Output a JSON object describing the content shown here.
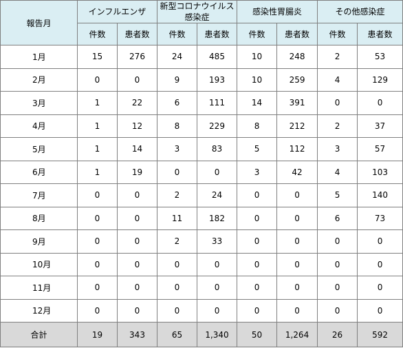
{
  "table": {
    "corner_label": "報告月",
    "groups": [
      {
        "label": "インフルエンザ"
      },
      {
        "label": "新型コロナウイルス\n感染症"
      },
      {
        "label": "感染性胃腸炎"
      },
      {
        "label": "その他感染症"
      }
    ],
    "sub_headers": [
      "件数",
      "患者数",
      "件数",
      "患者数",
      "件数",
      "患者数",
      "件数",
      "患者数"
    ],
    "rows": [
      {
        "month": "1月",
        "cells": [
          "15",
          "276",
          "24",
          "485",
          "10",
          "248",
          "2",
          "53"
        ]
      },
      {
        "month": "2月",
        "cells": [
          "0",
          "0",
          "9",
          "193",
          "10",
          "259",
          "4",
          "129"
        ]
      },
      {
        "month": "3月",
        "cells": [
          "1",
          "22",
          "6",
          "111",
          "14",
          "391",
          "0",
          "0"
        ]
      },
      {
        "month": "4月",
        "cells": [
          "1",
          "12",
          "8",
          "229",
          "8",
          "212",
          "2",
          "37"
        ]
      },
      {
        "month": "5月",
        "cells": [
          "1",
          "14",
          "3",
          "83",
          "5",
          "112",
          "3",
          "57"
        ]
      },
      {
        "month": "6月",
        "cells": [
          "1",
          "19",
          "0",
          "0",
          "3",
          "42",
          "4",
          "103"
        ]
      },
      {
        "month": "7月",
        "cells": [
          "0",
          "0",
          "2",
          "24",
          "0",
          "0",
          "5",
          "140"
        ]
      },
      {
        "month": "8月",
        "cells": [
          "0",
          "0",
          "11",
          "182",
          "0",
          "0",
          "6",
          "73"
        ]
      },
      {
        "month": "9月",
        "cells": [
          "0",
          "0",
          "2",
          "33",
          "0",
          "0",
          "0",
          "0"
        ]
      },
      {
        "month": "10月",
        "cells": [
          "0",
          "0",
          "0",
          "0",
          "0",
          "0",
          "0",
          "0"
        ]
      },
      {
        "month": "11月",
        "cells": [
          "0",
          "0",
          "0",
          "0",
          "0",
          "0",
          "0",
          "0"
        ]
      },
      {
        "month": "12月",
        "cells": [
          "0",
          "0",
          "0",
          "0",
          "0",
          "0",
          "0",
          "0"
        ]
      }
    ],
    "total": {
      "month": "合計",
      "cells": [
        "19",
        "343",
        "65",
        "1,340",
        "50",
        "1,264",
        "26",
        "592"
      ]
    }
  }
}
